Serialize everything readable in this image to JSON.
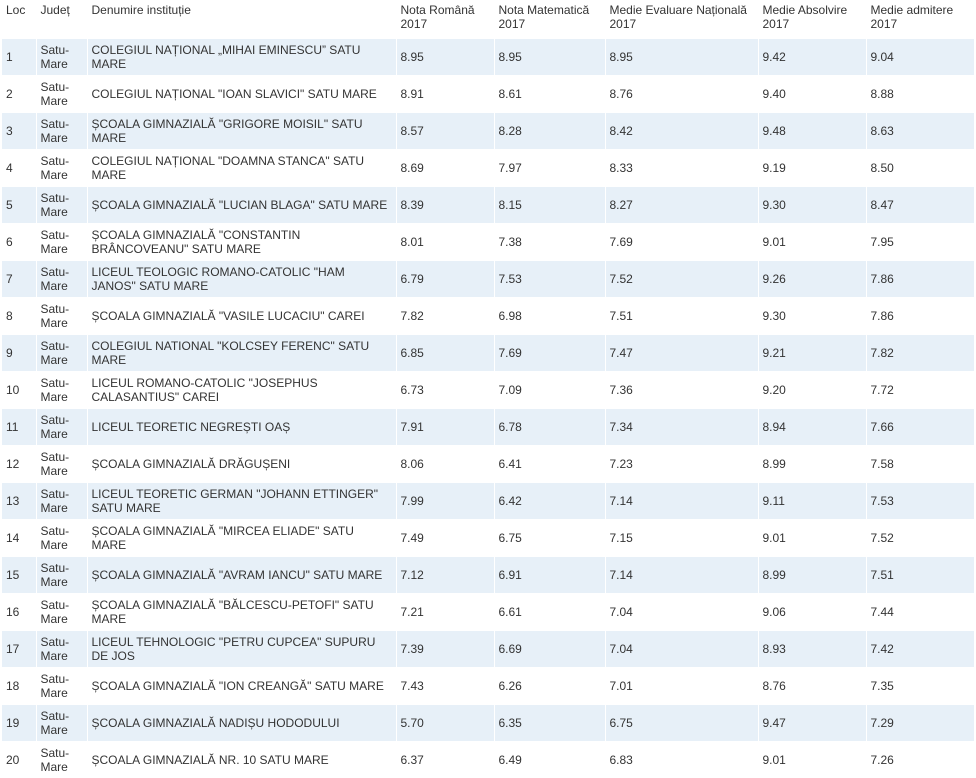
{
  "table": {
    "headers": [
      "Loc",
      "Județ",
      "Denumire instituție",
      "Nota Română 2017",
      "Nota Matematică 2017",
      "Medie Evaluare Națională 2017",
      "Medie Absolvire 2017",
      "Medie admitere 2017"
    ],
    "rows": [
      [
        "1",
        "Satu-Mare",
        "COLEGIUL NAȚIONAL „MIHAI EMINESCU” SATU MARE",
        "8.95",
        "8.95",
        "8.95",
        "9.42",
        "9.04"
      ],
      [
        "2",
        "Satu-Mare",
        "COLEGIUL NAȚIONAL \"IOAN SLAVICI\" SATU MARE",
        "8.91",
        "8.61",
        "8.76",
        "9.40",
        "8.88"
      ],
      [
        "3",
        "Satu-Mare",
        "ȘCOALA GIMNAZIALĂ \"GRIGORE MOISIL\" SATU MARE",
        "8.57",
        "8.28",
        "8.42",
        "9.48",
        "8.63"
      ],
      [
        "4",
        "Satu-Mare",
        "COLEGIUL NAȚIONAL \"DOAMNA STANCA\" SATU MARE",
        "8.69",
        "7.97",
        "8.33",
        "9.19",
        "8.50"
      ],
      [
        "5",
        "Satu-Mare",
        "ȘCOALA GIMNAZIALĂ \"LUCIAN BLAGA\" SATU MARE",
        "8.39",
        "8.15",
        "8.27",
        "9.30",
        "8.47"
      ],
      [
        "6",
        "Satu-Mare",
        "ȘCOALA GIMNAZIALĂ \"CONSTANTIN BRÂNCOVEANU\" SATU MARE",
        "8.01",
        "7.38",
        "7.69",
        "9.01",
        "7.95"
      ],
      [
        "7",
        "Satu-Mare",
        "LICEUL TEOLOGIC ROMANO-CATOLIC \"HAM JANOS\" SATU MARE",
        "6.79",
        "7.53",
        "7.52",
        "9.26",
        "7.86"
      ],
      [
        "8",
        "Satu-Mare",
        "ȘCOALA GIMNAZIALĂ \"VASILE LUCACIU\" CAREI",
        "7.82",
        "6.98",
        "7.51",
        "9.30",
        "7.86"
      ],
      [
        "9",
        "Satu-Mare",
        "COLEGIUL NATIONAL \"KOLCSEY FERENC\" SATU MARE",
        "6.85",
        "7.69",
        "7.47",
        "9.21",
        "7.82"
      ],
      [
        "10",
        "Satu-Mare",
        "LICEUL ROMANO-CATOLIC \"JOSEPHUS CALASANTIUS\" CAREI",
        "6.73",
        "7.09",
        "7.36",
        "9.20",
        "7.72"
      ],
      [
        "11",
        "Satu-Mare",
        "LICEUL TEORETIC NEGREȘTI OAȘ",
        "7.91",
        "6.78",
        "7.34",
        "8.94",
        "7.66"
      ],
      [
        "12",
        "Satu-Mare",
        "ȘCOALA GIMNAZIALĂ DRĂGUȘENI",
        "8.06",
        "6.41",
        "7.23",
        "8.99",
        "7.58"
      ],
      [
        "13",
        "Satu-Mare",
        "LICEUL TEORETIC GERMAN \"JOHANN ETTINGER\" SATU MARE",
        "7.99",
        "6.42",
        "7.14",
        "9.11",
        "7.53"
      ],
      [
        "14",
        "Satu-Mare",
        "ȘCOALA GIMNAZIALĂ \"MIRCEA ELIADE\" SATU MARE",
        "7.49",
        "6.75",
        "7.15",
        "9.01",
        "7.52"
      ],
      [
        "15",
        "Satu-Mare",
        "ȘCOALA GIMNAZIALĂ \"AVRAM IANCU\" SATU MARE",
        "7.12",
        "6.91",
        "7.14",
        "8.99",
        "7.51"
      ],
      [
        "16",
        "Satu-Mare",
        "ȘCOALA GIMNAZIALĂ \"BĂLCESCU-PETOFI\" SATU MARE",
        "7.21",
        "6.61",
        "7.04",
        "9.06",
        "7.44"
      ],
      [
        "17",
        "Satu-Mare",
        "LICEUL TEHNOLOGIC \"PETRU CUPCEA\" SUPURU DE JOS",
        "7.39",
        "6.69",
        "7.04",
        "8.93",
        "7.42"
      ],
      [
        "18",
        "Satu-Mare",
        "ȘCOALA GIMNAZIALĂ \"ION CREANGĂ\" SATU MARE",
        "7.43",
        "6.26",
        "7.01",
        "8.76",
        "7.35"
      ],
      [
        "19",
        "Satu-Mare",
        "ȘCOALA GIMNAZIALĂ NADIȘU HODODULUI",
        "5.70",
        "6.35",
        "6.75",
        "9.47",
        "7.29"
      ],
      [
        "20",
        "Satu-Mare",
        "ȘCOALA GIMNAZIALĂ NR. 10 SATU MARE",
        "6.37",
        "6.49",
        "6.83",
        "9.01",
        "7.26"
      ]
    ]
  }
}
